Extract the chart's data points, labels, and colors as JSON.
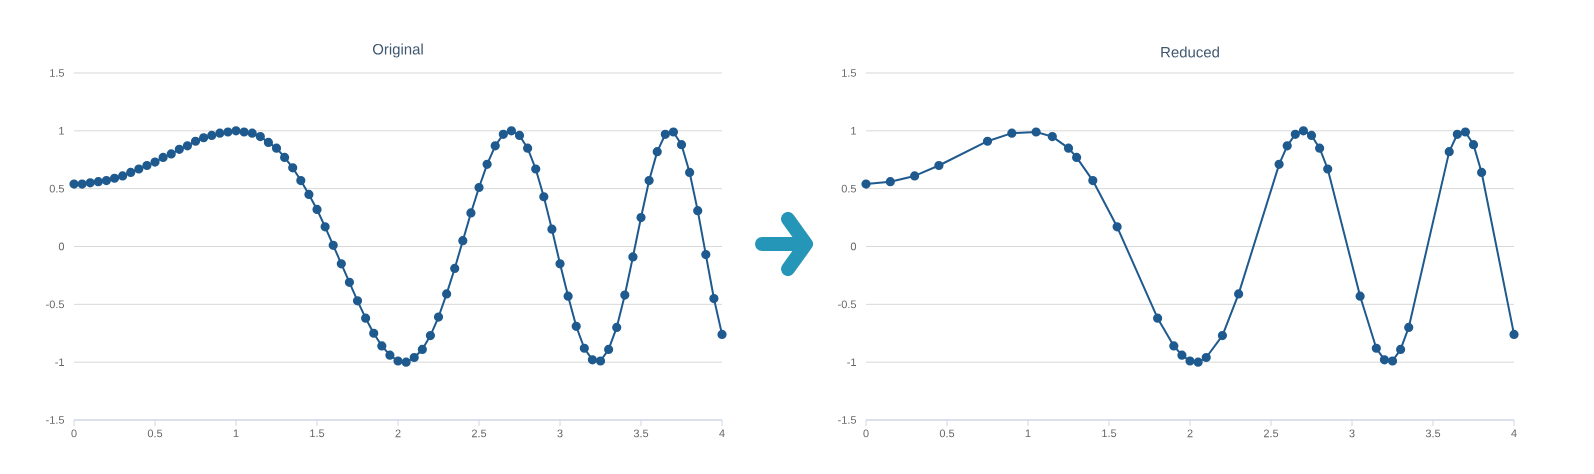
{
  "chart_data": [
    {
      "type": "line",
      "title": "Original",
      "color": "#1f5a8f",
      "marker": "circle",
      "grid": "y",
      "xlim": [
        0,
        4
      ],
      "ylim": [
        -1.5,
        1.5
      ],
      "xticks": [
        0,
        0.5,
        1,
        1.5,
        2,
        2.5,
        3,
        3.5,
        4
      ],
      "yticks": [
        -1.5,
        -1,
        -0.5,
        0,
        0.5,
        1,
        1.5
      ],
      "x": [
        0,
        0.05,
        0.1,
        0.15,
        0.2,
        0.25,
        0.3,
        0.35,
        0.4,
        0.45,
        0.5,
        0.55,
        0.6,
        0.65,
        0.7,
        0.75,
        0.8,
        0.85,
        0.9,
        0.95,
        1,
        1.05,
        1.1,
        1.15,
        1.2,
        1.25,
        1.3,
        1.35,
        1.4,
        1.45,
        1.5,
        1.55,
        1.6,
        1.65,
        1.7,
        1.75,
        1.8,
        1.85,
        1.9,
        1.95,
        2,
        2.05,
        2.1,
        2.15,
        2.2,
        2.25,
        2.3,
        2.35,
        2.4,
        2.45,
        2.5,
        2.55,
        2.6,
        2.65,
        2.7,
        2.75,
        2.8,
        2.85,
        2.9,
        2.95,
        3,
        3.05,
        3.1,
        3.15,
        3.2,
        3.25,
        3.3,
        3.35,
        3.4,
        3.45,
        3.5,
        3.55,
        3.6,
        3.65,
        3.7,
        3.75,
        3.8,
        3.85,
        3.9,
        3.95,
        4
      ],
      "values": [
        0.54,
        0.54,
        0.55,
        0.56,
        0.57,
        0.59,
        0.61,
        0.64,
        0.67,
        0.7,
        0.73,
        0.77,
        0.8,
        0.84,
        0.87,
        0.91,
        0.94,
        0.96,
        0.98,
        0.99,
        1,
        0.99,
        0.98,
        0.95,
        0.9,
        0.85,
        0.77,
        0.68,
        0.57,
        0.45,
        0.32,
        0.17,
        0.01,
        -0.15,
        -0.31,
        -0.47,
        -0.62,
        -0.75,
        -0.86,
        -0.94,
        -0.99,
        -1,
        -0.96,
        -0.89,
        -0.77,
        -0.61,
        -0.41,
        -0.19,
        0.05,
        0.29,
        0.51,
        0.71,
        0.87,
        0.97,
        1,
        0.96,
        0.85,
        0.67,
        0.43,
        0.15,
        -0.15,
        -0.43,
        -0.69,
        -0.88,
        -0.98,
        -0.99,
        -0.89,
        -0.7,
        -0.42,
        -0.09,
        0.25,
        0.57,
        0.82,
        0.97,
        0.99,
        0.88,
        0.64,
        0.31,
        -0.07,
        -0.45,
        -0.76
      ]
    },
    {
      "type": "line",
      "title": "Reduced",
      "color": "#1f5a8f",
      "marker": "circle",
      "grid": "y",
      "xlim": [
        0,
        4
      ],
      "ylim": [
        -1.5,
        1.5
      ],
      "xticks": [
        0,
        0.5,
        1,
        1.5,
        2,
        2.5,
        3,
        3.5,
        4
      ],
      "yticks": [
        -1.5,
        -1,
        -0.5,
        0,
        0.5,
        1,
        1.5
      ],
      "x": [
        0,
        0.15,
        0.3,
        0.45,
        0.75,
        0.9,
        1.05,
        1.15,
        1.25,
        1.3,
        1.4,
        1.55,
        1.8,
        1.9,
        1.95,
        2,
        2.05,
        2.1,
        2.2,
        2.3,
        2.55,
        2.6,
        2.65,
        2.7,
        2.75,
        2.8,
        2.85,
        3.05,
        3.15,
        3.2,
        3.25,
        3.3,
        3.35,
        3.6,
        3.65,
        3.7,
        3.75,
        3.8,
        4
      ],
      "values": [
        0.54,
        0.56,
        0.61,
        0.7,
        0.91,
        0.98,
        0.99,
        0.95,
        0.85,
        0.77,
        0.57,
        0.17,
        -0.62,
        -0.86,
        -0.94,
        -0.99,
        -1,
        -0.96,
        -0.77,
        -0.41,
        0.71,
        0.87,
        0.97,
        1,
        0.96,
        0.85,
        0.67,
        -0.43,
        -0.88,
        -0.98,
        -0.99,
        -0.89,
        -0.7,
        0.82,
        0.97,
        0.99,
        0.88,
        0.64,
        -0.76
      ]
    }
  ]
}
